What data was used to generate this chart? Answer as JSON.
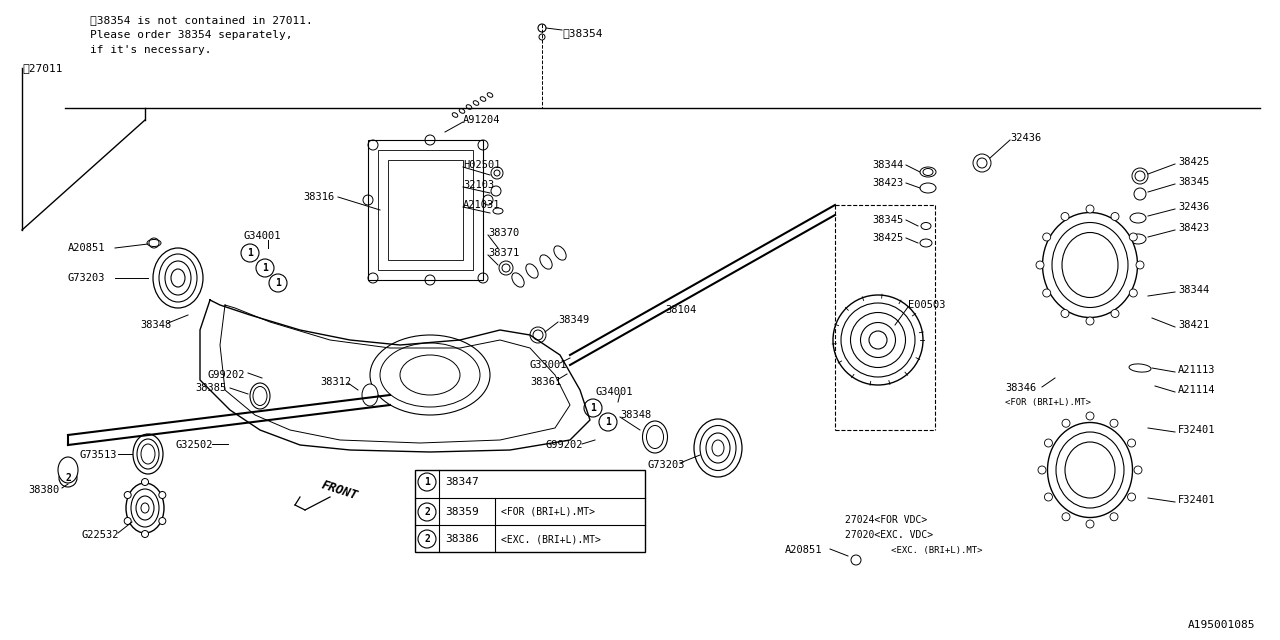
{
  "bg_color": "#ffffff",
  "line_color": "#000000",
  "text_color": "#000000",
  "watermark": "A195001085",
  "note_line1": "‸38354 is not contained in 27011.",
  "note_line2": "Please order 38354 separately,",
  "note_line3": "if it's necessary.",
  "part_27011": "‸27011",
  "part_38354": "‸38354"
}
